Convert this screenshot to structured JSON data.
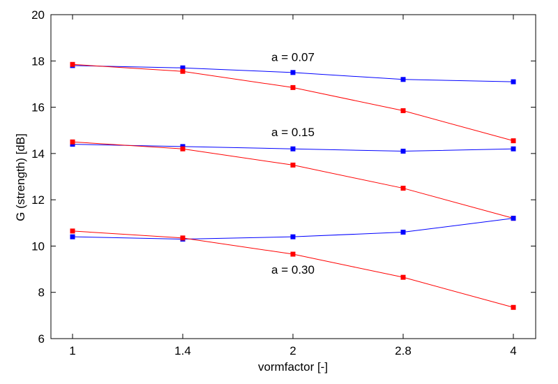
{
  "chart_data": {
    "type": "line",
    "title": "",
    "xlabel": "vormfactor [-]",
    "ylabel": "G (strength) [dB]",
    "x": [
      1,
      1.4,
      2,
      2.8,
      4
    ],
    "x_tick_labels": [
      "1",
      "1.4",
      "2",
      "2.8",
      "4"
    ],
    "y_ticks": [
      6,
      8,
      10,
      12,
      14,
      16,
      18,
      20
    ],
    "y_tick_labels": [
      "6",
      "8",
      "10",
      "12",
      "14",
      "16",
      "18",
      "20"
    ],
    "ylim": [
      6,
      20
    ],
    "grid": false,
    "legend": "none",
    "colors": {
      "blue": "#0000ff",
      "red": "#ff0000"
    },
    "series": [
      {
        "group": "a = 0.07",
        "color": "blue",
        "values": [
          17.8,
          17.7,
          17.5,
          17.2,
          17.1
        ]
      },
      {
        "group": "a = 0.07",
        "color": "red",
        "values": [
          17.85,
          17.55,
          16.85,
          15.85,
          14.55
        ]
      },
      {
        "group": "a = 0.15",
        "color": "blue",
        "values": [
          14.4,
          14.3,
          14.2,
          14.1,
          14.2
        ]
      },
      {
        "group": "a = 0.15",
        "color": "red",
        "values": [
          14.5,
          14.2,
          13.5,
          12.5,
          11.2
        ]
      },
      {
        "group": "a = 0.30",
        "color": "blue",
        "values": [
          10.4,
          10.3,
          10.4,
          10.6,
          11.2
        ]
      },
      {
        "group": "a = 0.30",
        "color": "red",
        "values": [
          10.65,
          10.35,
          9.65,
          8.65,
          7.35
        ]
      }
    ],
    "annotations": [
      {
        "text": "a = 0.07",
        "x_index": 2,
        "y": 18.0
      },
      {
        "text": "a = 0.15",
        "x_index": 2,
        "y": 14.75
      },
      {
        "text": "a = 0.30",
        "x_index": 2,
        "y": 8.8
      }
    ]
  }
}
